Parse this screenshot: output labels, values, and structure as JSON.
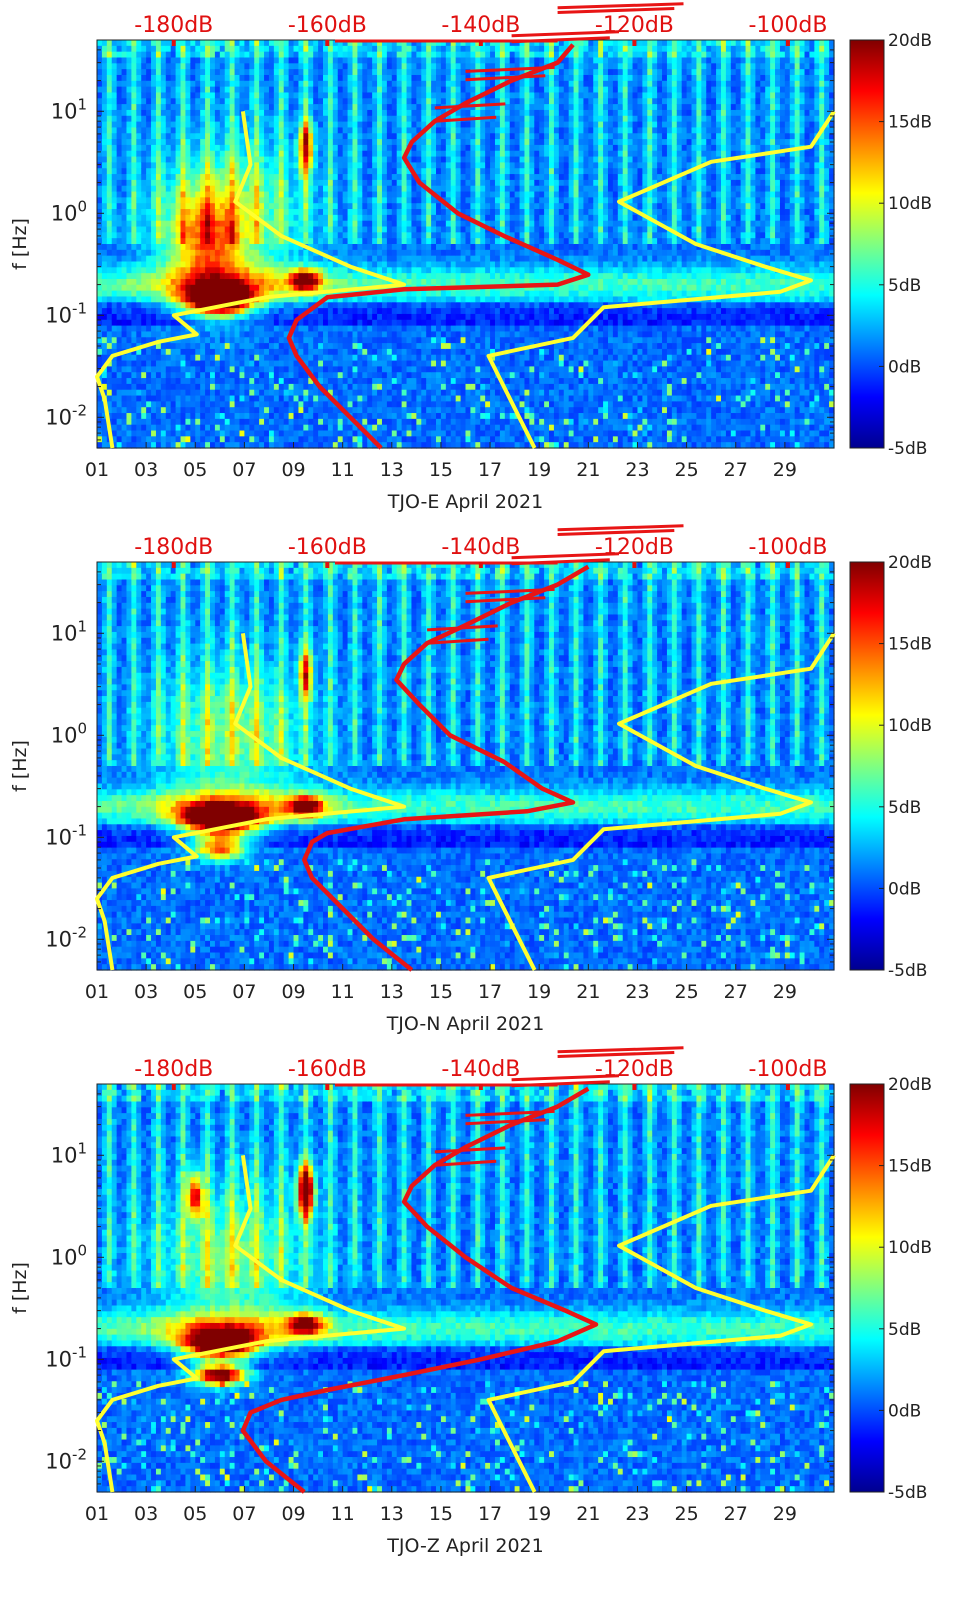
{
  "colorbar": {
    "ticks": [
      "20dB",
      "15dB",
      "10dB",
      "5dB",
      "0dB",
      "-5dB"
    ],
    "stops": [
      "#00008f",
      "#0000ff",
      "#0080ff",
      "#00ffff",
      "#80ff80",
      "#ffff00",
      "#ff8000",
      "#ff0000",
      "#800000"
    ]
  },
  "colors": {
    "top_axis": "#e01010",
    "red_curve": "#e81515",
    "yellow_curve": "#ffff30"
  },
  "chart_data": [
    {
      "type": "heatmap",
      "xlabel": "TJO-E April 2021",
      "ylabel": "f [Hz]",
      "x_ticks": [
        "01",
        "03",
        "05",
        "07",
        "09",
        "11",
        "13",
        "15",
        "17",
        "19",
        "21",
        "23",
        "25",
        "27",
        "29"
      ],
      "x_range_days": [
        1,
        31
      ],
      "y_ticks": [
        "10^{-2}",
        "10^{0}",
        "10^{1}",
        "10^{-1}"
      ],
      "y_tick_labels": [
        {
          "base": "10",
          "exp": "1"
        },
        {
          "base": "10",
          "exp": "0"
        },
        {
          "base": "10",
          "exp": "-1"
        },
        {
          "base": "10",
          "exp": "-2"
        }
      ],
      "ylim_hz": [
        0.005,
        50
      ],
      "top_axis_ticks": [
        "-180dB",
        "-160dB",
        "-140dB",
        "-120dB",
        "-100dB"
      ],
      "top_axis_range_db": [
        -190,
        -94
      ],
      "colorbar_range_db": [
        -5,
        20
      ],
      "hot_regions": [
        {
          "day": 6.0,
          "hz": 0.14,
          "level": 1.0,
          "dday": 1.3,
          "dlog": 0.14
        },
        {
          "day": 9.5,
          "hz": 0.22,
          "level": 0.7,
          "dday": 0.6,
          "dlog": 0.1
        },
        {
          "day": 9.5,
          "hz": 4.5,
          "level": 0.55,
          "dday": 0.3,
          "dlog": 0.25
        },
        {
          "day": 5.5,
          "hz": 0.5,
          "level": 0.4,
          "dday": 1.5,
          "dlog": 0.5
        }
      ],
      "red_curve": {
        "name": "noise PSD (dB, top axis)",
        "points": [
          [
            -153,
            0.005
          ],
          [
            -157,
            0.01
          ],
          [
            -161,
            0.02
          ],
          [
            -164,
            0.04
          ],
          [
            -165,
            0.06
          ],
          [
            -164,
            0.09
          ],
          [
            -160,
            0.15
          ],
          [
            -150,
            0.18
          ],
          [
            -130,
            0.2
          ],
          [
            -126,
            0.25
          ],
          [
            -130,
            0.35
          ],
          [
            -137,
            0.6
          ],
          [
            -143,
            1.0
          ],
          [
            -148,
            2.0
          ],
          [
            -150,
            3.5
          ],
          [
            -149,
            5
          ],
          [
            -146,
            8
          ],
          [
            -142,
            12
          ],
          [
            -136,
            20
          ],
          [
            -130,
            30
          ],
          [
            -128,
            45
          ]
        ]
      },
      "yellow_low": {
        "name": "low noise model",
        "points": [
          [
            -171,
            10
          ],
          [
            -170,
            3
          ],
          [
            -172,
            1.3
          ],
          [
            -166,
            0.6
          ],
          [
            -157,
            0.3
          ],
          [
            -150,
            0.2
          ],
          [
            -168,
            0.15
          ],
          [
            -180,
            0.1
          ],
          [
            -177,
            0.065
          ],
          [
            -182,
            0.055
          ],
          [
            -188,
            0.04
          ],
          [
            -190,
            0.025
          ],
          [
            -189,
            0.015
          ],
          [
            -188,
            0.005
          ]
        ]
      },
      "yellow_high": {
        "name": "high noise model",
        "points": [
          [
            -94,
            10
          ],
          [
            -97,
            4.5
          ],
          [
            -110,
            3.2
          ],
          [
            -122,
            1.3
          ],
          [
            -112,
            0.5
          ],
          [
            -103,
            0.3
          ],
          [
            -97,
            0.22
          ],
          [
            -101,
            0.17
          ],
          [
            -124,
            0.12
          ],
          [
            -128,
            0.06
          ],
          [
            -139,
            0.04
          ],
          [
            -135,
            0.01
          ],
          [
            -133,
            0.005
          ]
        ]
      }
    },
    {
      "type": "heatmap",
      "xlabel": "TJO-N April 2021",
      "ylabel": "f [Hz]",
      "x_ticks": [
        "01",
        "03",
        "05",
        "07",
        "09",
        "11",
        "13",
        "15",
        "17",
        "19",
        "21",
        "23",
        "25",
        "27",
        "29"
      ],
      "x_range_days": [
        1,
        31
      ],
      "y_tick_labels": [
        {
          "base": "10",
          "exp": "1"
        },
        {
          "base": "10",
          "exp": "0"
        },
        {
          "base": "10",
          "exp": "-1"
        },
        {
          "base": "10",
          "exp": "-2"
        }
      ],
      "ylim_hz": [
        0.005,
        50
      ],
      "top_axis_ticks": [
        "-180dB",
        "-160dB",
        "-140dB",
        "-120dB",
        "-100dB"
      ],
      "top_axis_range_db": [
        -190,
        -94
      ],
      "colorbar_range_db": [
        -5,
        20
      ],
      "hot_regions": [
        {
          "day": 6.0,
          "hz": 0.15,
          "level": 1.0,
          "dday": 1.5,
          "dlog": 0.14
        },
        {
          "day": 9.5,
          "hz": 0.2,
          "level": 0.65,
          "dday": 0.7,
          "dlog": 0.1
        },
        {
          "day": 6.0,
          "hz": 0.08,
          "level": 0.6,
          "dday": 1.0,
          "dlog": 0.12
        },
        {
          "day": 9.5,
          "hz": 4.0,
          "level": 0.45,
          "dday": 0.3,
          "dlog": 0.25
        }
      ],
      "red_curve": {
        "name": "noise PSD (dB, top axis)",
        "points": [
          [
            -149,
            0.005
          ],
          [
            -154,
            0.01
          ],
          [
            -158,
            0.02
          ],
          [
            -162,
            0.04
          ],
          [
            -163,
            0.06
          ],
          [
            -162,
            0.09
          ],
          [
            -160,
            0.11
          ],
          [
            -150,
            0.15
          ],
          [
            -134,
            0.18
          ],
          [
            -128,
            0.22
          ],
          [
            -132,
            0.3
          ],
          [
            -137,
            0.55
          ],
          [
            -144,
            1.0
          ],
          [
            -148,
            2.0
          ],
          [
            -151,
            3.5
          ],
          [
            -150,
            5
          ],
          [
            -147,
            8
          ],
          [
            -142,
            12
          ],
          [
            -136,
            20
          ],
          [
            -130,
            30
          ],
          [
            -126,
            45
          ]
        ]
      },
      "yellow_low": {
        "name": "low noise model",
        "points": [
          [
            -171,
            10
          ],
          [
            -170,
            3
          ],
          [
            -172,
            1.3
          ],
          [
            -166,
            0.6
          ],
          [
            -157,
            0.3
          ],
          [
            -150,
            0.2
          ],
          [
            -168,
            0.15
          ],
          [
            -180,
            0.1
          ],
          [
            -177,
            0.065
          ],
          [
            -182,
            0.055
          ],
          [
            -188,
            0.04
          ],
          [
            -190,
            0.025
          ],
          [
            -189,
            0.015
          ],
          [
            -188,
            0.005
          ]
        ]
      },
      "yellow_high": {
        "name": "high noise model",
        "points": [
          [
            -94,
            10
          ],
          [
            -97,
            4.5
          ],
          [
            -110,
            3.2
          ],
          [
            -122,
            1.3
          ],
          [
            -112,
            0.5
          ],
          [
            -103,
            0.3
          ],
          [
            -97,
            0.22
          ],
          [
            -101,
            0.17
          ],
          [
            -124,
            0.12
          ],
          [
            -128,
            0.06
          ],
          [
            -139,
            0.04
          ],
          [
            -135,
            0.01
          ],
          [
            -133,
            0.005
          ]
        ]
      }
    },
    {
      "type": "heatmap",
      "xlabel": "TJO-Z April 2021",
      "ylabel": "f [Hz]",
      "x_ticks": [
        "01",
        "03",
        "05",
        "07",
        "09",
        "11",
        "13",
        "15",
        "17",
        "19",
        "21",
        "23",
        "25",
        "27",
        "29"
      ],
      "x_range_days": [
        1,
        31
      ],
      "y_tick_labels": [
        {
          "base": "10",
          "exp": "1"
        },
        {
          "base": "10",
          "exp": "0"
        },
        {
          "base": "10",
          "exp": "-1"
        },
        {
          "base": "10",
          "exp": "-2"
        }
      ],
      "ylim_hz": [
        0.005,
        50
      ],
      "top_axis_ticks": [
        "-180dB",
        "-160dB",
        "-140dB",
        "-120dB",
        "-100dB"
      ],
      "top_axis_range_db": [
        -190,
        -94
      ],
      "colorbar_range_db": [
        -5,
        20
      ],
      "hot_regions": [
        {
          "day": 6.0,
          "hz": 0.14,
          "level": 1.0,
          "dday": 1.4,
          "dlog": 0.14
        },
        {
          "day": 6.0,
          "hz": 0.07,
          "level": 0.85,
          "dday": 1.0,
          "dlog": 0.1
        },
        {
          "day": 9.5,
          "hz": 4.5,
          "level": 0.8,
          "dday": 0.35,
          "dlog": 0.25
        },
        {
          "day": 5.0,
          "hz": 4.0,
          "level": 0.6,
          "dday": 0.3,
          "dlog": 0.22
        },
        {
          "day": 9.5,
          "hz": 0.22,
          "level": 0.65,
          "dday": 0.7,
          "dlog": 0.1
        }
      ],
      "red_curve": {
        "name": "noise PSD (dB, top axis)",
        "points": [
          [
            -163,
            0.005
          ],
          [
            -168,
            0.01
          ],
          [
            -171,
            0.02
          ],
          [
            -170,
            0.03
          ],
          [
            -166,
            0.04
          ],
          [
            -160,
            0.05
          ],
          [
            -150,
            0.07
          ],
          [
            -140,
            0.1
          ],
          [
            -130,
            0.15
          ],
          [
            -125,
            0.22
          ],
          [
            -129,
            0.3
          ],
          [
            -136,
            0.5
          ],
          [
            -142,
            1.0
          ],
          [
            -147,
            2.0
          ],
          [
            -150,
            3.5
          ],
          [
            -149,
            5
          ],
          [
            -146,
            8
          ],
          [
            -142,
            12
          ],
          [
            -136,
            20
          ],
          [
            -130,
            30
          ],
          [
            -126,
            45
          ]
        ]
      },
      "yellow_low": {
        "name": "low noise model",
        "points": [
          [
            -171,
            10
          ],
          [
            -170,
            3
          ],
          [
            -172,
            1.3
          ],
          [
            -166,
            0.6
          ],
          [
            -157,
            0.3
          ],
          [
            -150,
            0.2
          ],
          [
            -168,
            0.15
          ],
          [
            -180,
            0.1
          ],
          [
            -177,
            0.065
          ],
          [
            -182,
            0.055
          ],
          [
            -188,
            0.04
          ],
          [
            -190,
            0.025
          ],
          [
            -189,
            0.015
          ],
          [
            -188,
            0.005
          ]
        ]
      },
      "yellow_high": {
        "name": "high noise model",
        "points": [
          [
            -94,
            10
          ],
          [
            -97,
            4.5
          ],
          [
            -110,
            3.2
          ],
          [
            -122,
            1.3
          ],
          [
            -112,
            0.5
          ],
          [
            -103,
            0.3
          ],
          [
            -97,
            0.22
          ],
          [
            -101,
            0.17
          ],
          [
            -124,
            0.12
          ],
          [
            -128,
            0.06
          ],
          [
            -139,
            0.04
          ],
          [
            -135,
            0.01
          ],
          [
            -133,
            0.005
          ]
        ]
      }
    }
  ]
}
